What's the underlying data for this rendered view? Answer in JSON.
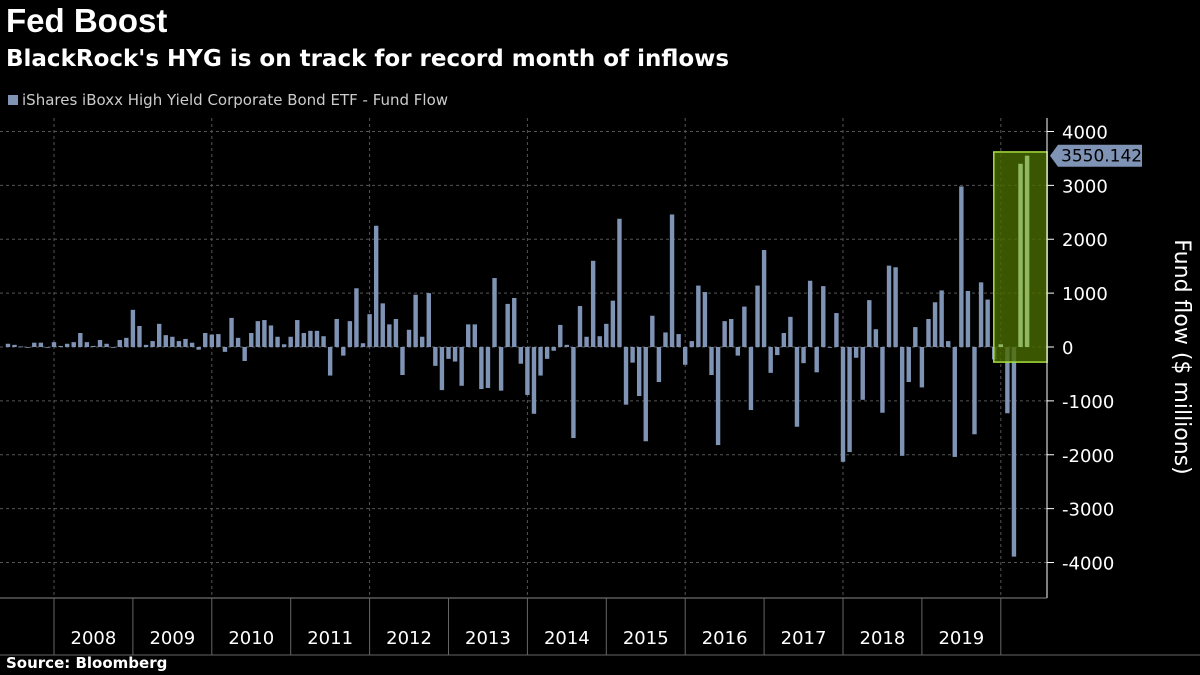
{
  "chart_data": {
    "type": "bar",
    "title": "Fed Boost",
    "subtitle": "BlackRock's HYG is on track for record month of inflows",
    "ylabel": "Fund flow ($ millions)",
    "ylim": [
      -4700,
      4300
    ],
    "yticks": [
      4000,
      3000,
      2000,
      1000,
      0,
      -1000,
      -2000,
      -3000,
      -4000
    ],
    "year_labels": [
      "2008",
      "2009",
      "2010",
      "2011",
      "2012",
      "2013",
      "2014",
      "2015",
      "2016",
      "2017",
      "2018",
      "2019"
    ],
    "grid": true,
    "bar_color": "#7f93b5",
    "legend": {
      "position": "top-left",
      "entries": [
        "iShares iBoxx High Yield Corporate Bond ETF - Fund Flow"
      ]
    },
    "series": [
      {
        "name": "iShares iBoxx High Yield Corporate Bond ETF - Fund Flow",
        "x": [
          "2007-06",
          "2007-07",
          "2007-08",
          "2007-09",
          "2007-10",
          "2007-11",
          "2007-12",
          "2008-01",
          "2008-02",
          "2008-03",
          "2008-04",
          "2008-05",
          "2008-06",
          "2008-07",
          "2008-08",
          "2008-09",
          "2008-10",
          "2008-11",
          "2008-12",
          "2009-01",
          "2009-02",
          "2009-03",
          "2009-04",
          "2009-05",
          "2009-06",
          "2009-07",
          "2009-08",
          "2009-09",
          "2009-10",
          "2009-11",
          "2009-12",
          "2010-01",
          "2010-02",
          "2010-03",
          "2010-04",
          "2010-05",
          "2010-06",
          "2010-07",
          "2010-08",
          "2010-09",
          "2010-10",
          "2010-11",
          "2010-12",
          "2011-01",
          "2011-02",
          "2011-03",
          "2011-04",
          "2011-05",
          "2011-06",
          "2011-07",
          "2011-08",
          "2011-09",
          "2011-10",
          "2011-11",
          "2011-12",
          "2012-01",
          "2012-02",
          "2012-03",
          "2012-04",
          "2012-05",
          "2012-06",
          "2012-07",
          "2012-08",
          "2012-09",
          "2012-10",
          "2012-11",
          "2012-12",
          "2013-01",
          "2013-02",
          "2013-03",
          "2013-04",
          "2013-05",
          "2013-06",
          "2013-07",
          "2013-08",
          "2013-09",
          "2013-10",
          "2013-11",
          "2013-12",
          "2014-01",
          "2014-02",
          "2014-03",
          "2014-04",
          "2014-05",
          "2014-06",
          "2014-07",
          "2014-08",
          "2014-09",
          "2014-10",
          "2014-11",
          "2014-12",
          "2015-01",
          "2015-02",
          "2015-03",
          "2015-04",
          "2015-05",
          "2015-06",
          "2015-07",
          "2015-08",
          "2015-09",
          "2015-10",
          "2015-11",
          "2015-12",
          "2016-01",
          "2016-02",
          "2016-03",
          "2016-04",
          "2016-05",
          "2016-06",
          "2016-07",
          "2016-08",
          "2016-09",
          "2016-10",
          "2016-11",
          "2016-12",
          "2017-01",
          "2017-02",
          "2017-03",
          "2017-04",
          "2017-05",
          "2017-06",
          "2017-07",
          "2017-08",
          "2017-09",
          "2017-10",
          "2017-11",
          "2017-12",
          "2018-01",
          "2018-02",
          "2018-03",
          "2018-04",
          "2018-05",
          "2018-06",
          "2018-07",
          "2018-08",
          "2018-09",
          "2018-10",
          "2018-11",
          "2018-12",
          "2019-01",
          "2019-02",
          "2019-03",
          "2019-04",
          "2019-05",
          "2019-06",
          "2019-07",
          "2019-08",
          "2019-09",
          "2019-10",
          "2019-11",
          "2019-12",
          "2020-01",
          "2020-02",
          "2020-03",
          "2020-04",
          "2020-05"
        ],
        "values": [
          60,
          40,
          10,
          0,
          80,
          80,
          0,
          90,
          20,
          60,
          90,
          260,
          90,
          20,
          130,
          60,
          0,
          130,
          170,
          690,
          390,
          40,
          110,
          430,
          220,
          190,
          110,
          150,
          80,
          -50,
          260,
          230,
          240,
          -90,
          540,
          170,
          -260,
          260,
          480,
          500,
          400,
          190,
          50,
          190,
          500,
          260,
          300,
          300,
          200,
          -530,
          520,
          -160,
          480,
          1090,
          70,
          610,
          2250,
          810,
          420,
          520,
          -520,
          320,
          970,
          190,
          1000,
          -350,
          -800,
          -220,
          -270,
          -720,
          420,
          420,
          -780,
          -760,
          1280,
          -810,
          800,
          910,
          -310,
          -890,
          -1240,
          -530,
          -220,
          -70,
          410,
          40,
          -1690,
          760,
          190,
          1600,
          200,
          430,
          860,
          2380,
          -1070,
          -290,
          -910,
          -1750,
          580,
          -650,
          270,
          2460,
          240,
          -330,
          110,
          1140,
          1020,
          -520,
          -1820,
          480,
          520,
          -160,
          750,
          -1170,
          1140,
          1800,
          -480,
          -150,
          260,
          560,
          -1480,
          -300,
          1230,
          -470,
          1130,
          0,
          630,
          -2130,
          -1950,
          -200,
          -980,
          870,
          330,
          -1220,
          1510,
          1480,
          -2020,
          -650,
          370,
          -750,
          520,
          830,
          1050,
          110,
          -2040,
          2980,
          1040,
          -1620,
          1200,
          880,
          -230,
          50,
          -1230,
          -3890,
          3400,
          3550.1421
        ]
      }
    ],
    "annotations": {
      "last_value_label": "3550.1421",
      "highlight_box": {
        "x_range": [
          "2020-01",
          "2020-05"
        ],
        "y_range": [
          -280,
          3620
        ],
        "fill": "#4a6b00",
        "stroke": "#a8e040"
      }
    },
    "source": "Source: Bloomberg"
  }
}
